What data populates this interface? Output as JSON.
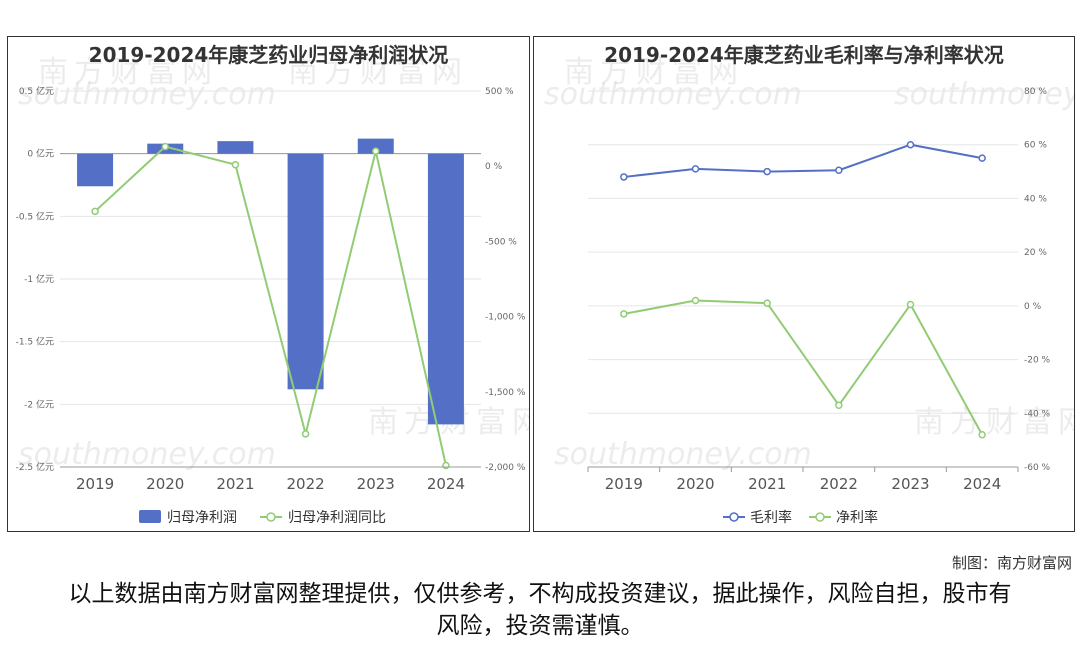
{
  "credit": "制图：南方财富网",
  "disclaimer": "以上数据由南方财富网整理提供，仅供参考，不构成投资建议，据此操作，风险自担，股市有风险，投资需谨慎。",
  "watermark": {
    "cn": "南方财富网",
    "en": "southmoney.com"
  },
  "chart_data": [
    {
      "type": "bar",
      "title": "2019-2024年康芝药业归母净利润状况",
      "categories": [
        "2019",
        "2020",
        "2021",
        "2022",
        "2023",
        "2024"
      ],
      "left_ticks": [
        "0.5 亿元",
        "0 亿元",
        "-0.5 亿元",
        "-1 亿元",
        "-1.5 亿元",
        "-2 亿元",
        "-2.5 亿元"
      ],
      "right_ticks": [
        "500 %",
        "0 %",
        "-500 %",
        "-1,000 %",
        "-1,500 %",
        "-2,000 %"
      ],
      "ylim": [
        -2.5,
        0.5
      ],
      "y2lim": [
        -2000,
        500
      ],
      "series": [
        {
          "name": "归母净利润",
          "type": "bar",
          "axis": "left",
          "color": "#5470c6",
          "values": [
            -0.26,
            0.08,
            0.1,
            -1.88,
            0.12,
            -2.16
          ]
        },
        {
          "name": "归母净利润同比",
          "type": "line",
          "axis": "right",
          "color": "#91cc75",
          "values": [
            -300,
            130,
            10,
            -1780,
            100,
            -1990
          ]
        }
      ]
    },
    {
      "type": "line",
      "title": "2019-2024年康芝药业毛利率与净利率状况",
      "categories": [
        "2019",
        "2020",
        "2021",
        "2022",
        "2023",
        "2024"
      ],
      "right_ticks": [
        "80 %",
        "60 %",
        "40 %",
        "20 %",
        "0 %",
        "-20 %",
        "-40 %",
        "-60 %"
      ],
      "ylim": [
        -60,
        80
      ],
      "series": [
        {
          "name": "毛利率",
          "color": "#5470c6",
          "values": [
            48,
            51,
            50,
            50.5,
            60,
            55
          ]
        },
        {
          "name": "净利率",
          "color": "#91cc75",
          "values": [
            -3,
            2,
            1,
            -37,
            0.5,
            -48
          ]
        }
      ]
    }
  ]
}
